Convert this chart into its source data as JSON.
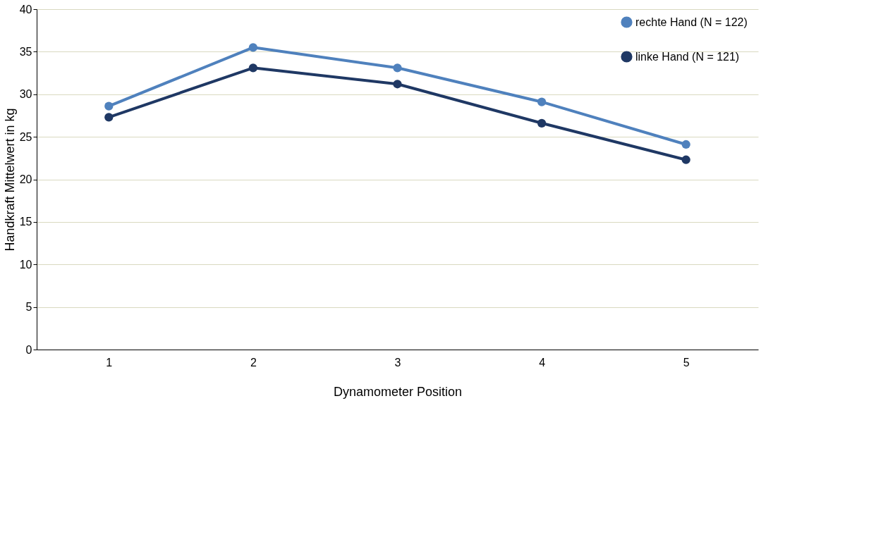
{
  "chart_data": {
    "type": "line",
    "xlabel": "Dynamometer Position",
    "ylabel": "Handkraft Mittelwert in kg",
    "categories": [
      "1",
      "2",
      "3",
      "4",
      "5"
    ],
    "series": [
      {
        "name": "rechte Hand  (N = 122)",
        "color": "#4f81bd",
        "values": [
          28.6,
          35.5,
          33.1,
          29.1,
          24.1
        ]
      },
      {
        "name": "linke Hand  (N = 121)",
        "color": "#1f3864",
        "values": [
          27.3,
          33.1,
          31.2,
          26.6,
          22.3
        ]
      }
    ],
    "ylim": [
      0,
      40
    ],
    "yticks": [
      0,
      5,
      10,
      15,
      20,
      25,
      30,
      35,
      40
    ],
    "grid": "y",
    "legend": "top right",
    "marker": "circle",
    "line_style": "solid"
  }
}
